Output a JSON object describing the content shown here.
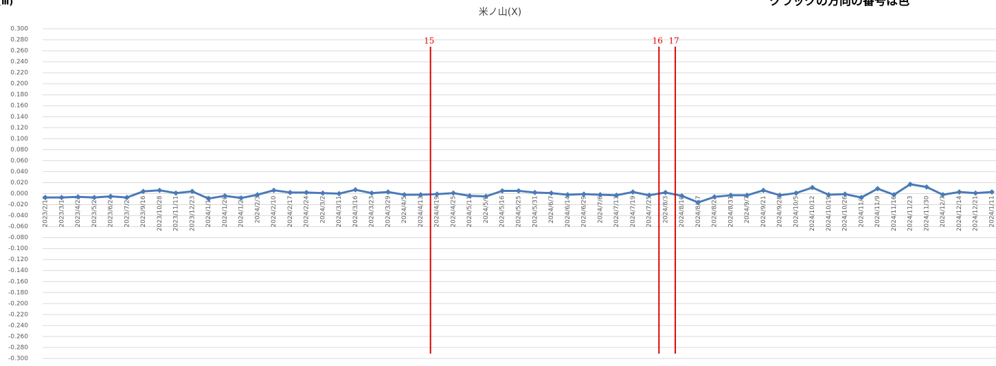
{
  "chart_data": {
    "type": "line",
    "title": "米ノ山(X)",
    "corner_labels": [
      "(ⅲ)",
      "クラックの方向の番号は色"
    ],
    "categories": [
      "2023/2/18",
      "2023/3/11",
      "2023/4/22",
      "2023/5/27",
      "2023/6/24",
      "2023/7/29",
      "2023/9/16",
      "2023/10/28",
      "2023/11/11",
      "2023/12/23",
      "2024/1/13",
      "2024/1/20",
      "2024/1/27",
      "2024/2/3",
      "2024/2/10",
      "2024/2/17",
      "2024/2/24",
      "2024/3/2",
      "2024/3/11",
      "2024/3/16",
      "2024/3/23",
      "2024/3/29",
      "2024/4/5",
      "2024/4/13",
      "2024/4/19",
      "2024/4/25",
      "2024/5/11",
      "2024/5/9",
      "2024/5/16",
      "2024/5/25",
      "2024/5/31",
      "2024/6/7",
      "2024/6/14",
      "2024/6/29",
      "2024/7/6",
      "2024/7/13",
      "2024/7/19",
      "2024/7/25",
      "2024/8/3",
      "2024/8/10",
      "2024/8/17",
      "2024/8/23",
      "2024/8/31",
      "2024/9/7",
      "2024/9/21",
      "2024/9/28",
      "2024/10/5",
      "2024/10/12",
      "2024/10/19",
      "2024/10/26",
      "2024/11/2",
      "2024/11/9",
      "2024/11/16",
      "2024/11/23",
      "2024/11/30",
      "2024/12/7",
      "2024/12/14",
      "2024/12/21",
      "2024/1/11"
    ],
    "series": [
      {
        "color": "#4a7ab8",
        "values": [
          -0.007,
          -0.007,
          -0.006,
          -0.007,
          -0.005,
          -0.007,
          0.004,
          0.006,
          0.001,
          0.004,
          -0.009,
          -0.004,
          -0.008,
          -0.002,
          0.006,
          0.002,
          0.002,
          0.001,
          0.0,
          0.007,
          0.001,
          0.003,
          -0.002,
          -0.002,
          -0.001,
          0.001,
          -0.004,
          -0.005,
          0.005,
          0.005,
          0.002,
          0.001,
          -0.002,
          -0.001,
          -0.002,
          -0.003,
          0.003,
          -0.003,
          0.002,
          -0.004,
          -0.016,
          -0.006,
          -0.003,
          -0.003,
          0.006,
          -0.003,
          0.001,
          0.011,
          -0.002,
          -0.001,
          -0.007,
          0.009,
          -0.002,
          0.017,
          0.012,
          -0.002,
          0.003,
          0.001,
          0.003
        ]
      }
    ],
    "annotations": [
      "15",
      "16",
      "17"
    ],
    "annotation_color": "#e00000",
    "ylim": [
      -0.3,
      0.3
    ],
    "yticks": [
      {
        "value": 0.3,
        "label": "0.300"
      },
      {
        "value": 0.28,
        "label": "0.280"
      },
      {
        "value": 0.26,
        "label": "0.260"
      },
      {
        "value": 0.24,
        "label": "0.240"
      },
      {
        "value": 0.22,
        "label": "0.220"
      },
      {
        "value": 0.2,
        "label": "0.200"
      },
      {
        "value": 0.18,
        "label": "0.180"
      },
      {
        "value": 0.16,
        "label": "0.160"
      },
      {
        "value": 0.14,
        "label": "0.140"
      },
      {
        "value": 0.12,
        "label": "0.120"
      },
      {
        "value": 0.1,
        "label": "0.100"
      },
      {
        "value": 0.08,
        "label": "0.080"
      },
      {
        "value": 0.06,
        "label": "0.060"
      },
      {
        "value": 0.04,
        "label": "0.040"
      },
      {
        "value": 0.02,
        "label": "0.020"
      },
      {
        "value": 0,
        "label": "0.000"
      },
      {
        "value": -0.02,
        "label": "-0.020"
      },
      {
        "value": -0.04,
        "label": "-0.040"
      },
      {
        "value": -0.06,
        "label": "-0.060"
      },
      {
        "value": -0.08,
        "label": "-0.080"
      },
      {
        "value": -0.1,
        "label": "-0.100"
      },
      {
        "value": -0.12,
        "label": "-0.120"
      },
      {
        "value": -0.14,
        "label": "-0.140"
      },
      {
        "value": -0.16,
        "label": "-0.160"
      },
      {
        "value": -0.18,
        "label": "-0.180"
      },
      {
        "value": -0.2,
        "label": "-0.200"
      },
      {
        "value": -0.22,
        "label": "-0.220"
      },
      {
        "value": -0.24,
        "label": "-0.240"
      },
      {
        "value": -0.26,
        "label": "-0.260"
      },
      {
        "value": -0.28,
        "label": "-0.280"
      },
      {
        "value": -0.3,
        "label": "-0.300"
      }
    ],
    "grid": true
  }
}
